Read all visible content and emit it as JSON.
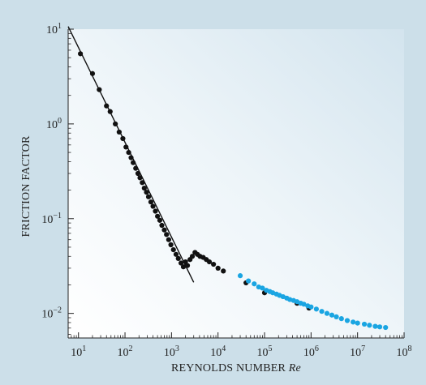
{
  "chart_data": {
    "type": "scatter",
    "xlabel": "REYNOLDS NUMBER",
    "xlabel_italic": "Re",
    "ylabel": "FRICTION FACTOR",
    "x_scale": "log",
    "y_scale": "log",
    "xlim": [
      6,
      100000000
    ],
    "ylim": [
      0.0055,
      10
    ],
    "grid": false,
    "x_ticks": [
      {
        "value": 10,
        "base": "10",
        "exp": "1"
      },
      {
        "value": 100,
        "base": "10",
        "exp": "2"
      },
      {
        "value": 1000,
        "base": "10",
        "exp": "3"
      },
      {
        "value": 10000,
        "base": "10",
        "exp": "4"
      },
      {
        "value": 100000,
        "base": "10",
        "exp": "5"
      },
      {
        "value": 1000000,
        "base": "10",
        "exp": "6"
      },
      {
        "value": 10000000,
        "base": "10",
        "exp": "7"
      },
      {
        "value": 100000000,
        "base": "10",
        "exp": "8"
      }
    ],
    "y_ticks": [
      {
        "value": 0.01,
        "base": "10",
        "exp": "−2"
      },
      {
        "value": 0.1,
        "base": "10",
        "exp": "−1"
      },
      {
        "value": 1,
        "base": "10",
        "exp": "0"
      },
      {
        "value": 10,
        "base": "10",
        "exp": "1"
      }
    ],
    "series": [
      {
        "color": "#111111",
        "x": [
          11,
          20,
          28,
          40,
          48,
          62,
          75,
          90,
          105,
          120,
          135,
          150,
          170,
          190,
          210,
          235,
          260,
          290,
          320,
          360,
          400,
          450,
          500,
          560,
          620,
          700,
          780,
          870,
          970,
          1100,
          1250,
          1400,
          1600,
          1800,
          2000,
          2200,
          2500,
          2800,
          3200,
          3600,
          4100,
          4800,
          5600,
          6500,
          8000,
          10000,
          13000,
          40000,
          100000,
          500000,
          900000
        ],
        "y": [
          5.5,
          3.4,
          2.3,
          1.55,
          1.35,
          1.0,
          0.82,
          0.7,
          0.57,
          0.5,
          0.44,
          0.39,
          0.34,
          0.3,
          0.27,
          0.24,
          0.21,
          0.19,
          0.17,
          0.15,
          0.135,
          0.12,
          0.106,
          0.096,
          0.085,
          0.076,
          0.068,
          0.06,
          0.053,
          0.047,
          0.042,
          0.038,
          0.034,
          0.031,
          0.035,
          0.032,
          0.037,
          0.04,
          0.044,
          0.042,
          0.04,
          0.039,
          0.037,
          0.035,
          0.033,
          0.03,
          0.028,
          0.021,
          0.0165,
          0.0128,
          0.0114
        ]
      },
      {
        "color": "#1aa5e2",
        "x": [
          30000,
          45000,
          60000,
          75000,
          90000,
          110000,
          130000,
          150000,
          180000,
          210000,
          250000,
          300000,
          350000,
          420000,
          500000,
          600000,
          700000,
          850000,
          1000000,
          1300000,
          1700000,
          2200000,
          2800000,
          3500000,
          4500000,
          6000000,
          8000000,
          10000000,
          14000000,
          18000000,
          24000000,
          30000000,
          40000000
        ],
        "y": [
          0.025,
          0.022,
          0.0205,
          0.019,
          0.0185,
          0.0175,
          0.017,
          0.0165,
          0.016,
          0.0155,
          0.015,
          0.0145,
          0.014,
          0.0137,
          0.0133,
          0.0128,
          0.0125,
          0.012,
          0.0117,
          0.0111,
          0.0105,
          0.01,
          0.0096,
          0.0092,
          0.0088,
          0.0084,
          0.0081,
          0.0079,
          0.0077,
          0.0075,
          0.0073,
          0.0072,
          0.0071
        ]
      }
    ],
    "reference_line": {
      "x": [
        6,
        3000
      ],
      "y": [
        10.67,
        0.0213
      ]
    }
  }
}
